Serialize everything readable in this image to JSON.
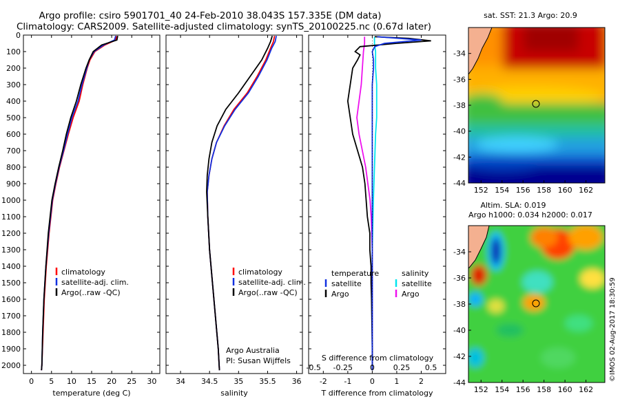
{
  "header": {
    "line1": "Argo profile: csiro 5901701_40 24-Feb-2010 38.043S 157.335E (DM data)",
    "line2": "Climatology: CARS2009. Satellite-adjusted climatology: synTS_20100225.nc (0.67d later)"
  },
  "depth_ticks": [
    0,
    100,
    200,
    300,
    400,
    500,
    600,
    700,
    800,
    900,
    1000,
    1100,
    1200,
    1300,
    1400,
    1500,
    1600,
    1700,
    1800,
    1900,
    2000
  ],
  "colors": {
    "climatology": "#ff0000",
    "satellite": "#1030e0",
    "argo": "#000000",
    "sal_sat": "#00e5ee",
    "sal_argo": "#ee10ee"
  },
  "chart_data": [
    {
      "type": "line",
      "xlabel": "temperature (deg C)",
      "xlim": [
        -2,
        32
      ],
      "xticks": [
        0,
        5,
        10,
        15,
        20,
        25,
        30
      ],
      "ylim": [
        0,
        2050
      ],
      "legend": [
        "climatology",
        "satellite-adj. clim.",
        "Argo(..raw -QC)"
      ],
      "series": [
        {
          "name": "climatology",
          "depth": [
            5,
            30,
            60,
            100,
            150,
            200,
            300,
            400,
            500,
            600,
            700,
            800,
            900,
            1000,
            1200,
            1400,
            1600,
            1800,
            2000,
            2030
          ],
          "values": [
            21.2,
            21.0,
            18.3,
            15.8,
            14.6,
            13.9,
            12.8,
            11.9,
            10.4,
            9.2,
            8.1,
            7.0,
            6.1,
            5.3,
            4.4,
            3.7,
            3.2,
            2.9,
            2.6,
            2.5
          ]
        },
        {
          "name": "satellite-adj. clim.",
          "depth": [
            5,
            30,
            60,
            100,
            150,
            200,
            300,
            400,
            500,
            600,
            700,
            800,
            900,
            1000,
            1200,
            1400,
            1600,
            1800,
            2000,
            2030
          ],
          "values": [
            21.0,
            20.7,
            18.0,
            15.6,
            14.4,
            13.8,
            12.6,
            11.6,
            10.1,
            9.0,
            8.0,
            6.9,
            6.0,
            5.2,
            4.3,
            3.6,
            3.1,
            2.8,
            2.6,
            2.5
          ]
        },
        {
          "name": "Argo(..raw -QC)",
          "depth": [
            5,
            30,
            60,
            100,
            150,
            200,
            300,
            400,
            500,
            600,
            700,
            800,
            900,
            1000,
            1200,
            1400,
            1600,
            1800,
            2000,
            2030
          ],
          "values": [
            21.5,
            21.3,
            17.5,
            15.4,
            14.4,
            13.6,
            12.3,
            11.2,
            9.8,
            8.7,
            7.8,
            6.8,
            5.9,
            5.1,
            4.2,
            3.6,
            3.1,
            2.8,
            2.6,
            2.5
          ]
        }
      ]
    },
    {
      "type": "line",
      "xlabel": "salinity",
      "xlim": [
        33.75,
        36.1
      ],
      "xticks": [
        34,
        34.5,
        35,
        35.5,
        36
      ],
      "ylim": [
        0,
        2050
      ],
      "legend": [
        "climatology",
        "satellite-adj. clim.",
        "Argo(..raw -QC)"
      ],
      "annotation": [
        "Argo Australia",
        "PI: Susan Wijffels"
      ],
      "series": [
        {
          "name": "climatology",
          "depth": [
            5,
            40,
            80,
            150,
            250,
            350,
            450,
            550,
            650,
            750,
            850,
            950,
            1100,
            1300,
            1500,
            1700,
            1900,
            2030
          ],
          "values": [
            35.62,
            35.6,
            35.55,
            35.47,
            35.32,
            35.15,
            34.92,
            34.75,
            34.62,
            34.54,
            34.49,
            34.46,
            34.47,
            34.5,
            34.55,
            34.6,
            34.65,
            34.67
          ]
        },
        {
          "name": "satellite-adj. clim.",
          "depth": [
            5,
            40,
            80,
            150,
            250,
            350,
            450,
            550,
            650,
            750,
            850,
            950,
            1100,
            1300,
            1500,
            1700,
            1900,
            2030
          ],
          "values": [
            35.65,
            35.63,
            35.57,
            35.49,
            35.34,
            35.17,
            34.94,
            34.76,
            34.62,
            34.54,
            34.49,
            34.46,
            34.47,
            34.5,
            34.55,
            34.6,
            34.65,
            34.67
          ]
        },
        {
          "name": "Argo(..raw -QC)",
          "depth": [
            5,
            40,
            80,
            150,
            250,
            350,
            450,
            550,
            650,
            750,
            850,
            950,
            1100,
            1300,
            1500,
            1700,
            1900,
            2030
          ],
          "values": [
            35.58,
            35.55,
            35.5,
            35.4,
            35.2,
            35.0,
            34.78,
            34.63,
            34.54,
            34.49,
            34.46,
            34.45,
            34.47,
            34.5,
            34.55,
            34.6,
            34.65,
            34.67
          ]
        }
      ]
    },
    {
      "type": "line",
      "xlabel": "T difference from climatology",
      "xlabel_top": "S difference from climatology",
      "xlim": [
        -2.6,
        3.0
      ],
      "xticks": [
        -2,
        -1,
        0,
        1,
        2
      ],
      "xticks_top": [
        "-0.5",
        "-0.25",
        "0",
        "0.25",
        "0.5"
      ],
      "ylim": [
        0,
        2050
      ],
      "legend_left_title": "temperature",
      "legend_right_title": "salinity",
      "legend": [
        "satellite",
        "Argo",
        "satellite",
        "Argo"
      ],
      "series": [
        {
          "name": "temperature satellite",
          "depth": [
            10,
            30,
            50,
            70,
            100,
            150,
            200,
            300,
            400,
            500,
            700,
            900,
            1100,
            1300,
            1500,
            1800,
            2030
          ],
          "values": [
            0.2,
            2.0,
            0.5,
            0.1,
            0.0,
            0.05,
            0.05,
            0.0,
            0.0,
            0.0,
            0.0,
            0.0,
            0.0,
            0.0,
            0.0,
            0.0,
            0.0
          ]
        },
        {
          "name": "temperature Argo",
          "depth": [
            10,
            20,
            35,
            50,
            70,
            100,
            120,
            150,
            200,
            300,
            400,
            500,
            600,
            700,
            800,
            900,
            1000,
            1100,
            1200,
            1300,
            1400,
            1500,
            1600,
            1700,
            1800,
            1900,
            2030
          ],
          "values": [
            0.1,
            1.5,
            2.4,
            1.0,
            -0.5,
            -0.7,
            -0.5,
            -0.6,
            -0.8,
            -0.9,
            -1.0,
            -0.9,
            -0.8,
            -0.6,
            -0.4,
            -0.3,
            -0.25,
            -0.2,
            -0.1,
            -0.1,
            -0.05,
            -0.05,
            -0.03,
            -0.02,
            -0.01,
            0.0,
            0.0
          ]
        },
        {
          "name": "salinity satellite",
          "depth": [
            10,
            50,
            100,
            200,
            300,
            400,
            500,
            600,
            800,
            1000,
            1300,
            1600,
            1900,
            2030
          ],
          "values": [
            0.02,
            0.02,
            0.03,
            0.03,
            0.04,
            0.04,
            0.04,
            0.03,
            0.02,
            0.01,
            0.0,
            0.0,
            0.0,
            0.0
          ]
        },
        {
          "name": "salinity Argo",
          "depth": [
            10,
            50,
            100,
            200,
            300,
            400,
            500,
            600,
            700,
            800,
            900,
            1000,
            1100,
            1300,
            1500,
            1700,
            2030
          ],
          "values": [
            -0.07,
            -0.07,
            -0.08,
            -0.09,
            -0.1,
            -0.12,
            -0.14,
            -0.12,
            -0.09,
            -0.06,
            -0.04,
            -0.02,
            -0.01,
            0.0,
            0.0,
            0.0,
            0.0
          ]
        }
      ]
    },
    {
      "type": "heatmap",
      "title": "sat. SST: 21.3 Argo: 20.9",
      "xticks": [
        152,
        154,
        156,
        158,
        160,
        162
      ],
      "yticks": [
        -34,
        -36,
        -38,
        -40,
        -42,
        -44
      ],
      "xlim": [
        150.8,
        163.8
      ],
      "ylim": [
        -44,
        -32
      ],
      "marker": {
        "lon": 157.335,
        "lat": -38.043
      }
    },
    {
      "type": "heatmap",
      "title": "Altim. SLA: 0.019",
      "subtitle": "Argo h1000: 0.034 h2000: 0.017",
      "xticks": [
        152,
        154,
        156,
        158,
        160,
        162
      ],
      "yticks": [
        -34,
        -36,
        -38,
        -40,
        -42,
        -44
      ],
      "xlim": [
        150.8,
        163.8
      ],
      "ylim": [
        -44,
        -32
      ],
      "marker": {
        "lon": 157.335,
        "lat": -38.043
      }
    }
  ],
  "watermark": "©IMOS 02-Aug-2017 18:30:59"
}
